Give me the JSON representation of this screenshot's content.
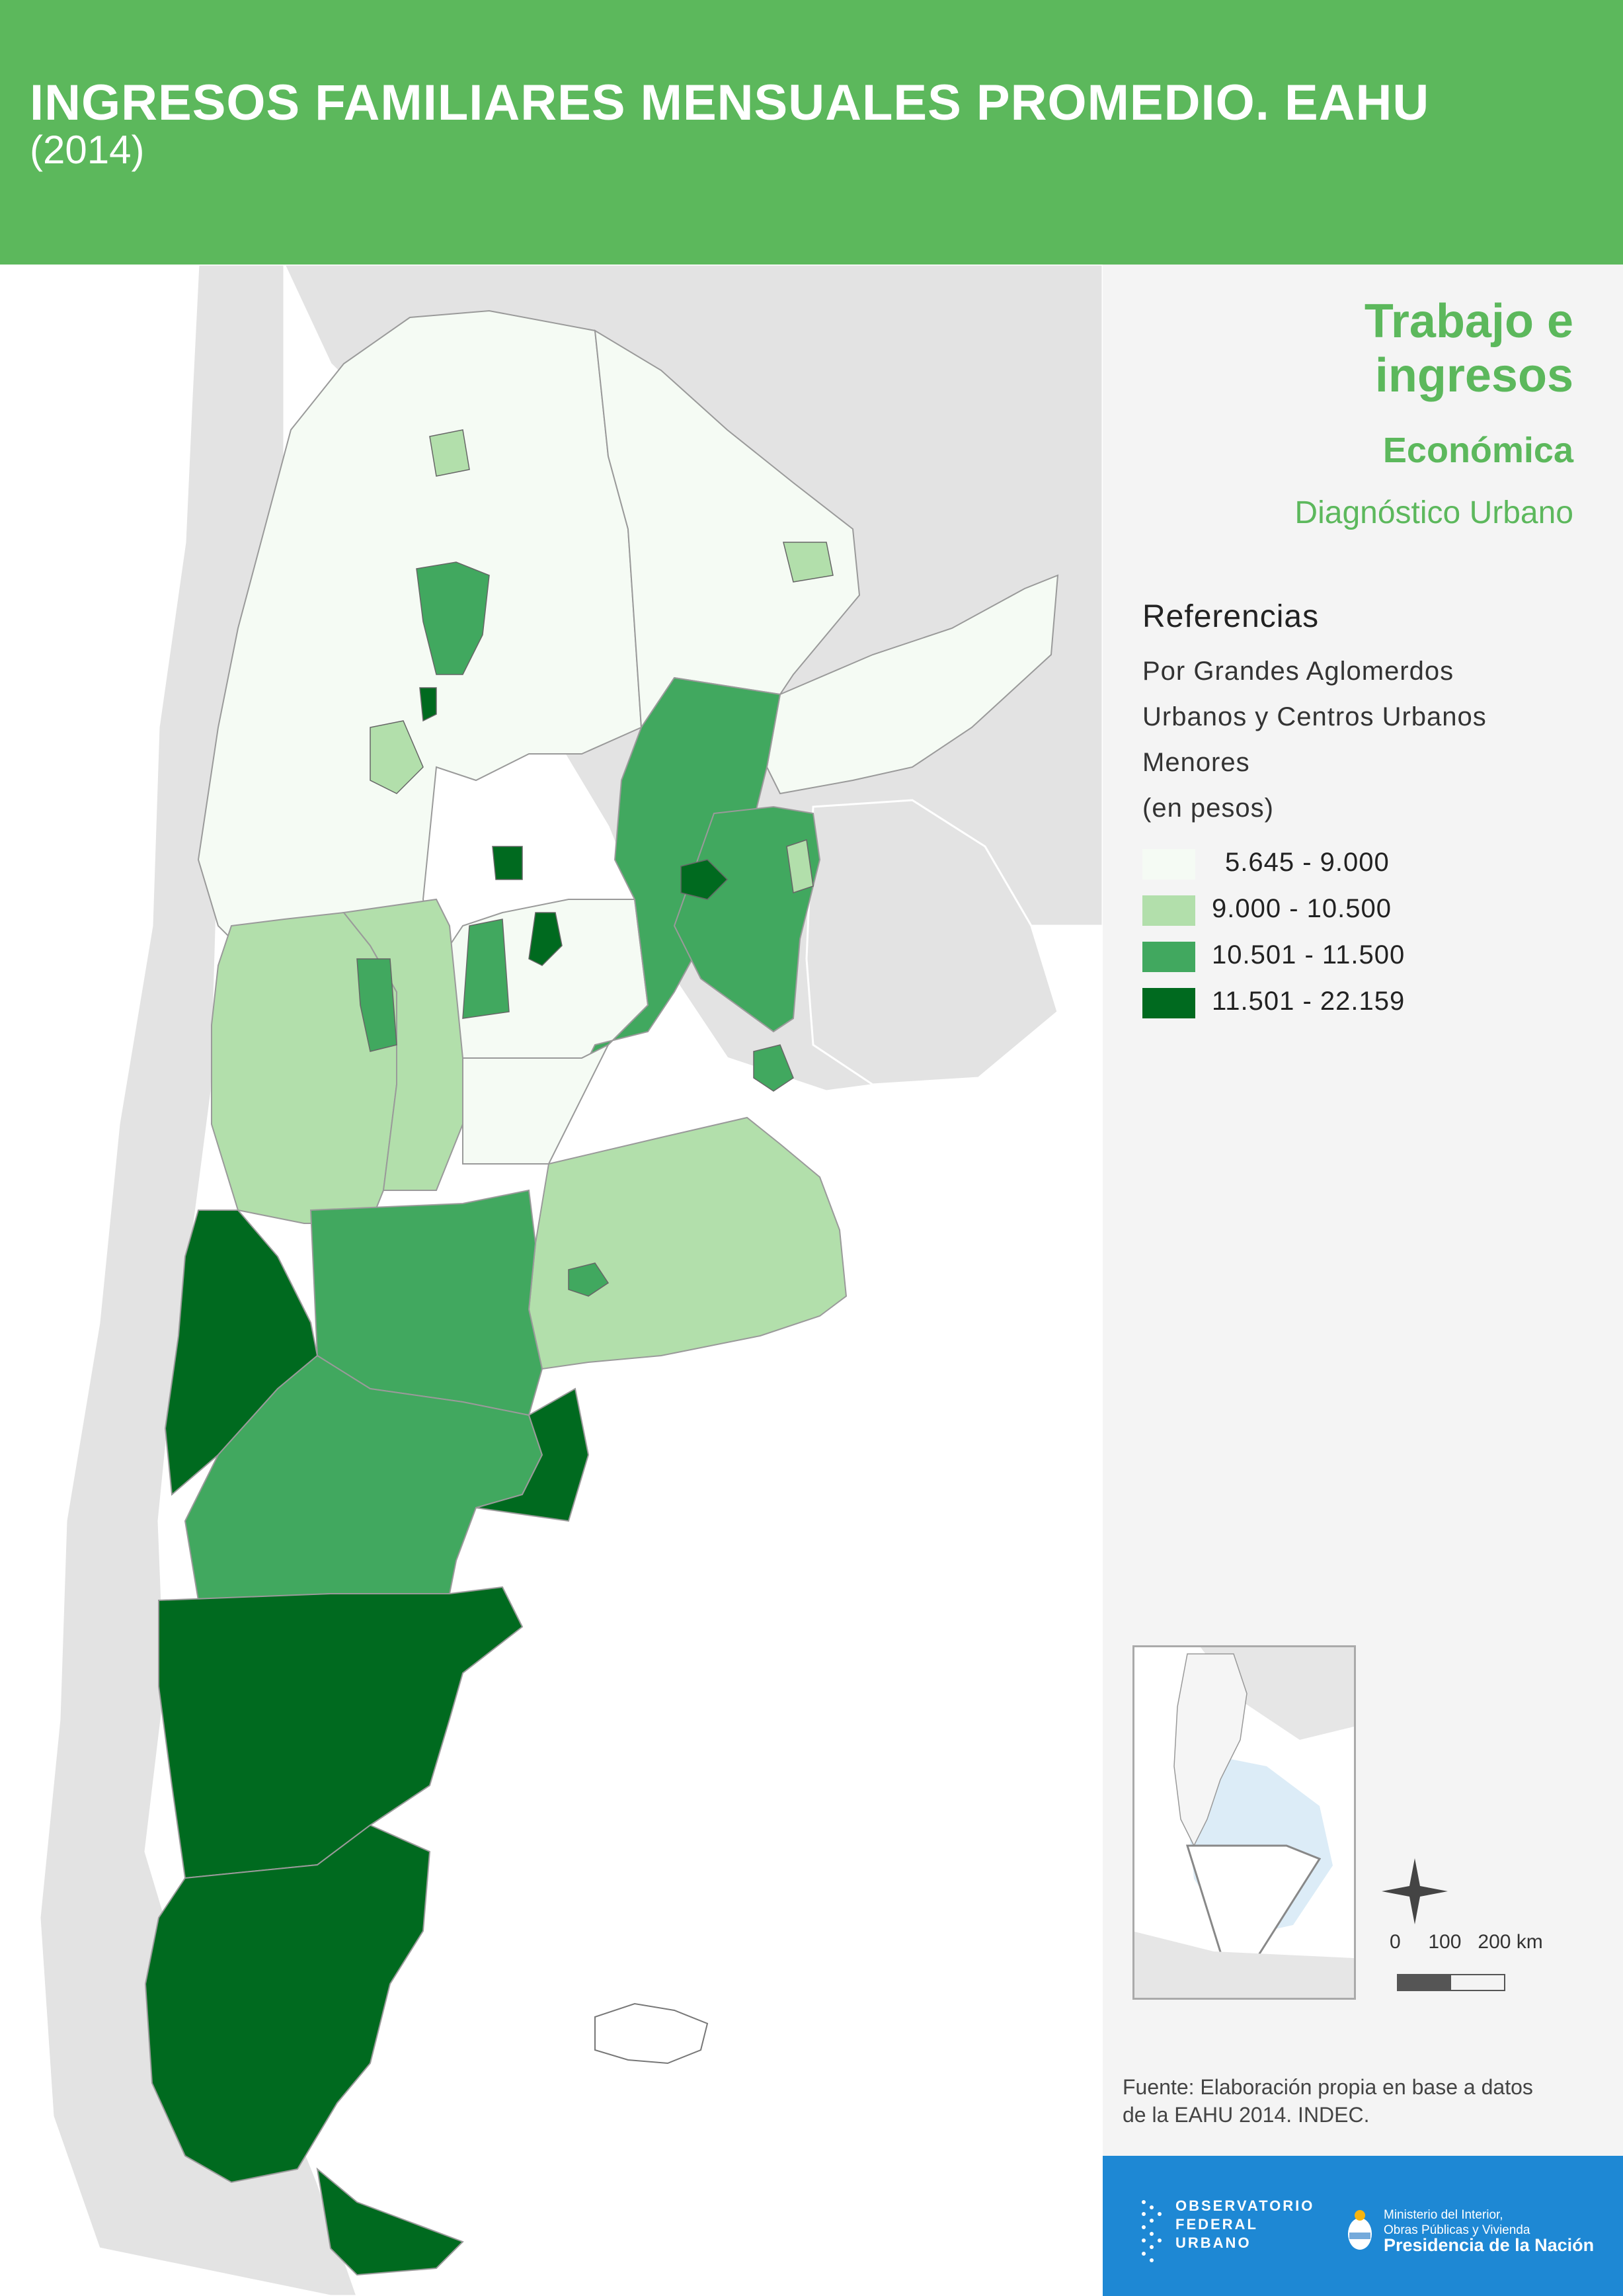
{
  "header": {
    "title": "INGRESOS FAMILIARES MENSUALES PROMEDIO. EAHU",
    "subtitle": "(2014)"
  },
  "theme": {
    "main": "Trabajo e ingresos",
    "category": "Económica",
    "section": "Diagnóstico Urbano"
  },
  "references": {
    "title": "Referencias",
    "lines": [
      "Por Grandes Aglomerdos",
      "Urbanos y Centros Urbanos",
      "Menores",
      "(en pesos)"
    ]
  },
  "legend": [
    {
      "label": "5.645 - 9.000",
      "color": "#f5fbf4"
    },
    {
      "label": "9.000 - 10.500",
      "color": "#b2dfab"
    },
    {
      "label": "10.501 - 11.500",
      "color": "#41a85f"
    },
    {
      "label": "11.501 - 22.159",
      "color": "#006a1f"
    }
  ],
  "scale": {
    "labels": "0     100   200 km"
  },
  "source": {
    "line1": "Fuente: Elaboración propia en base a datos",
    "line2": "de la EAHU 2014. INDEC."
  },
  "footer": {
    "org1": {
      "line1": "OBSERVATORIO",
      "line2": "FEDERAL",
      "line3": "URBANO"
    },
    "org2": {
      "line1": "Ministerio del Interior,",
      "line2": "Obras Públicas y Vivienda",
      "line3": "Presidencia de la Nación"
    }
  },
  "colors": {
    "header_bg": "#5cb85c",
    "footer_bg": "#1e88d4",
    "neighbor_land": "#e3e3e3",
    "class1": "#f5fbf4",
    "class2": "#b2dfab",
    "class3": "#41a85f",
    "class4": "#006a1f"
  }
}
